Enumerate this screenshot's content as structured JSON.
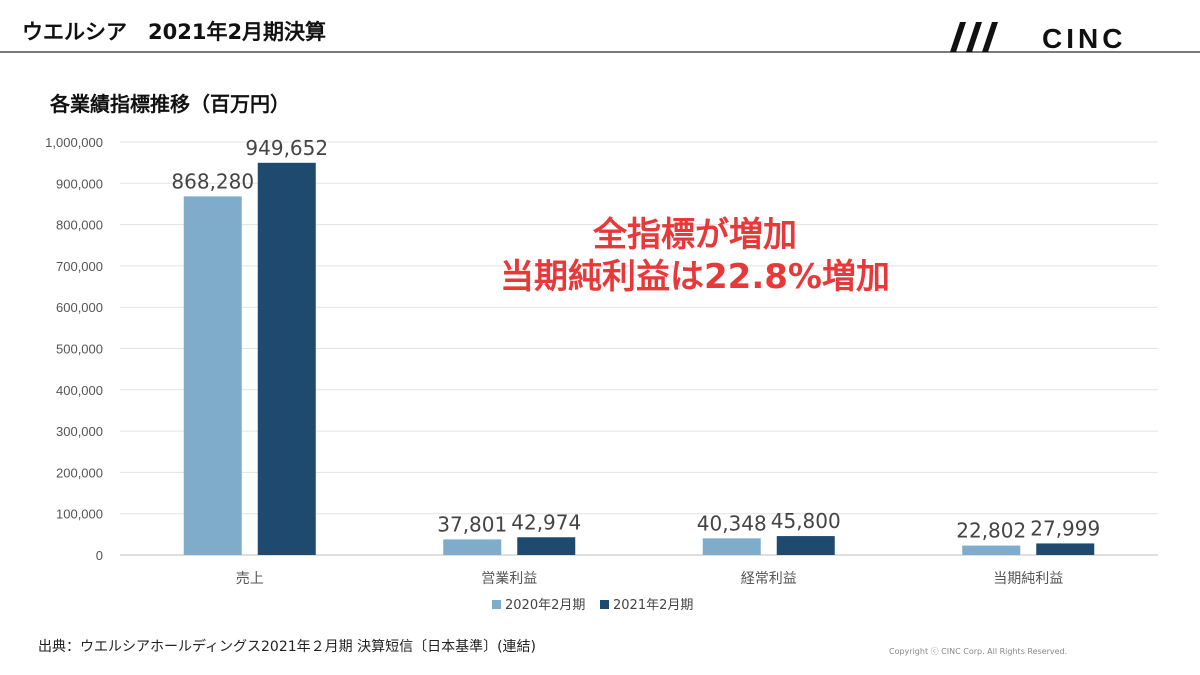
{
  "header": {
    "title": "ウエルシア　2021年2月期決算",
    "logo_text": "CINC"
  },
  "chart_data": {
    "type": "bar",
    "title": "各業績指標推移（百万円）",
    "categories": [
      "売上",
      "営業利益",
      "経常利益",
      "当期純利益"
    ],
    "series": [
      {
        "name": "2020年2月期",
        "values": [
          868280,
          37801,
          40348,
          22802
        ],
        "color": "#7faccb"
      },
      {
        "name": "2021年2月期",
        "values": [
          949652,
          42974,
          45800,
          27999
        ],
        "color": "#1f4a6f"
      }
    ],
    "data_labels": [
      [
        "868,280",
        "37,801",
        "40,348",
        "22,802"
      ],
      [
        "949,652",
        "42,974",
        "45,800",
        "27,999"
      ]
    ],
    "ylim": [
      0,
      1000000
    ],
    "y_ticks": [
      "0",
      "100,000",
      "200,000",
      "300,000",
      "400,000",
      "500,000",
      "600,000",
      "700,000",
      "800,000",
      "900,000",
      "1,000,000"
    ],
    "xlabel": "",
    "ylabel": "",
    "grid": true,
    "legend_position": "bottom-center"
  },
  "highlight": {
    "line1": "全指標が増加",
    "line2": "当期純利益は22.8%増加"
  },
  "footer": {
    "source": "出典：ウエルシアホールディングス2021年２月期 決算短信〔日本基準〕(連結)",
    "copyright": "Copyright ⓒ CINC Corp. All Rights Reserved."
  }
}
